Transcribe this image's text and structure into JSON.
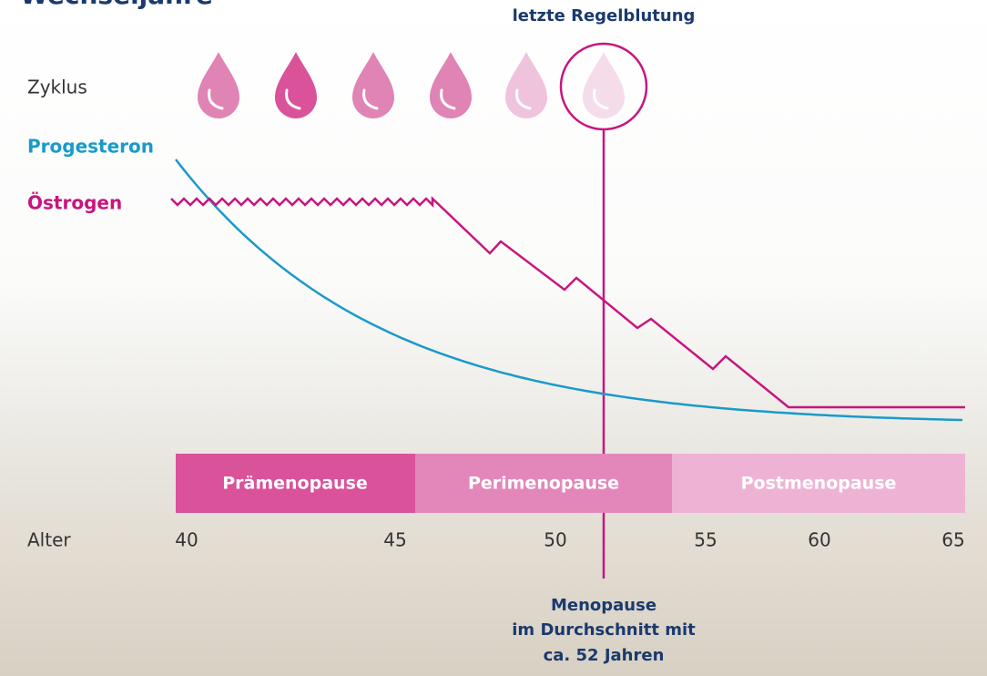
{
  "header": {
    "title": "Wechseljahre",
    "annotation": "letzte Regelblutung"
  },
  "labels": {
    "cycle": "Zyklus",
    "progesterone": "Progesteron",
    "estrogen": "Östrogen",
    "age": "Alter"
  },
  "phases": [
    "Prämenopause",
    "Perimenopause",
    "Postmenopause"
  ],
  "ages": [
    "40",
    "45",
    "50",
    "55",
    "60",
    "65"
  ],
  "menopause": [
    "Menopause",
    "im Durchschnitt mit",
    "ca. 52 Jahren"
  ]
}
